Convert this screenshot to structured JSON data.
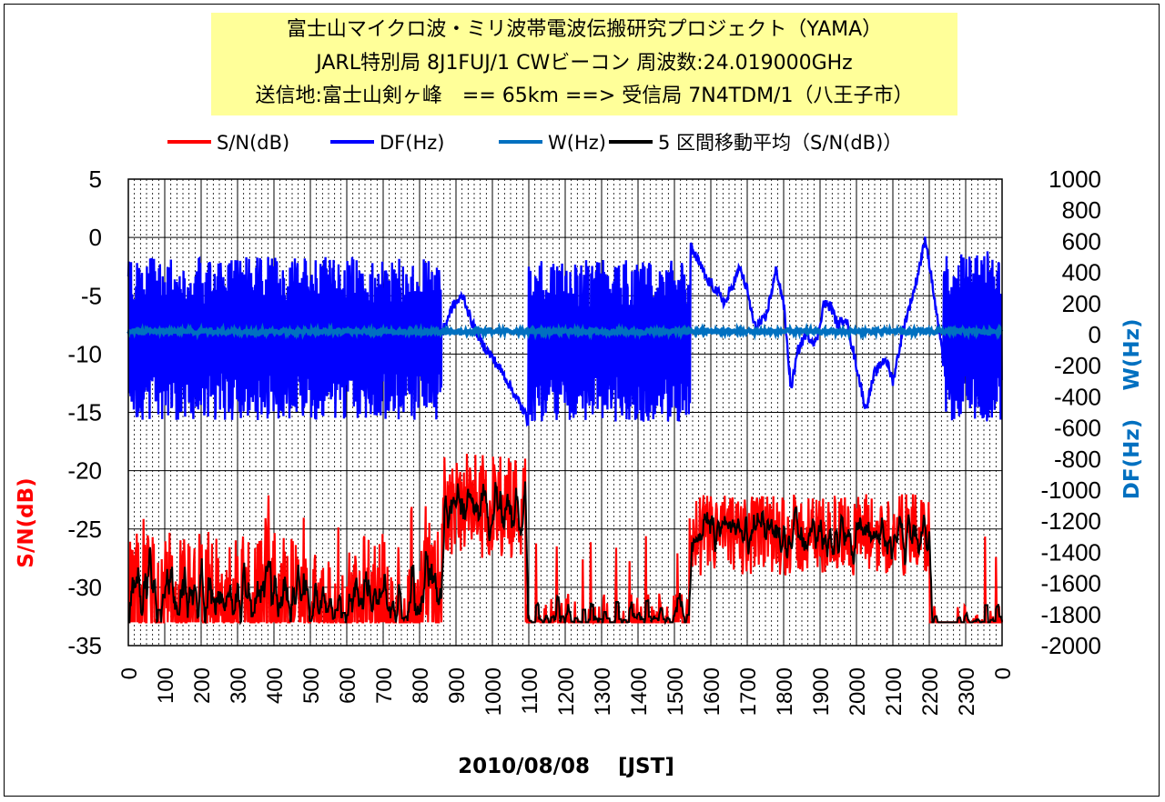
{
  "title": {
    "line1": "富士山マイクロ波・ミリ波帯電波伝搬研究プロジェクト（YAMA）",
    "line2": "JARL特別局 8J1FUJ/1 CWビーコン 周波数:24.019000GHz",
    "line3": "送信地:富士山剣ヶ峰　== 65km ==> 受信局 7N4TDM/1（八王子市）"
  },
  "colors": {
    "sn": "#ff0000",
    "df": "#0000ff",
    "w": "#0070c0",
    "ma": "#000000",
    "title_bg": "#ffff99"
  },
  "chart_data": {
    "type": "line",
    "xlabel": "2010/08/08　 [JST]",
    "ylabel_left": "S/N(dB)",
    "ylabel_right_df": "DF(Hz)",
    "ylabel_right_w": "W(Hz)",
    "x_ticks": [
      "0",
      "100",
      "200",
      "300",
      "400",
      "500",
      "600",
      "700",
      "800",
      "900",
      "1000",
      "1100",
      "1200",
      "1300",
      "1400",
      "1500",
      "1600",
      "1700",
      "1800",
      "1900",
      "2000",
      "2100",
      "2200",
      "2300",
      "0"
    ],
    "y_left_ticks": [
      "5",
      "0",
      "-5",
      "-10",
      "-15",
      "-20",
      "-25",
      "-30",
      "-35"
    ],
    "y_right_ticks": [
      "1000",
      "800",
      "600",
      "400",
      "200",
      "0",
      "-200",
      "-400",
      "-600",
      "-800",
      "-1000",
      "-1200",
      "-1400",
      "-1600",
      "-1800",
      "-2000"
    ],
    "ylim_left": [
      -35,
      5
    ],
    "ylim_right": [
      -2000,
      1000
    ],
    "xlim_hours": [
      0,
      24
    ],
    "grid": true,
    "legend_position": "top",
    "series": [
      {
        "name": "S/N(dB)",
        "axis": "left",
        "style": "noisy-band",
        "floor": -33,
        "segments": [
          {
            "from": 0,
            "to": 8.6,
            "level": -29.0,
            "spread": 3.8,
            "density": 0.55
          },
          {
            "from": 8.6,
            "to": 10.9,
            "level": -23.0,
            "spread": 4.5,
            "density": 1.0
          },
          {
            "from": 10.9,
            "to": 15.4,
            "level": -32.0,
            "spread": 1.5,
            "density": 0.35
          },
          {
            "from": 15.4,
            "to": 22.0,
            "level": -25.5,
            "spread": 3.5,
            "density": 1.0
          },
          {
            "from": 22.0,
            "to": 24.0,
            "level": -32.5,
            "spread": 1.0,
            "density": 0.25
          }
        ]
      },
      {
        "name": "DF(Hz)",
        "axis": "right",
        "style": "mixed",
        "segments": [
          {
            "from": 0,
            "to": 8.6,
            "kind": "oscillate",
            "high": 500,
            "low": -550
          },
          {
            "from": 8.6,
            "to": 11.0,
            "kind": "drift",
            "points": [
              [
                8.6,
                0
              ],
              [
                8.9,
                180
              ],
              [
                9.2,
                250
              ],
              [
                9.4,
                100
              ],
              [
                9.7,
                -50
              ],
              [
                10.0,
                -150
              ],
              [
                10.3,
                -250
              ],
              [
                10.6,
                -380
              ],
              [
                11.0,
                -560
              ]
            ]
          },
          {
            "from": 11.0,
            "to": 15.45,
            "kind": "oscillate",
            "high": 480,
            "low": -560
          },
          {
            "from": 15.45,
            "to": 24.0,
            "kind": "drift",
            "points": [
              [
                15.45,
                560
              ],
              [
                15.7,
                450
              ],
              [
                15.9,
                350
              ],
              [
                16.1,
                300
              ],
              [
                16.4,
                200
              ],
              [
                16.6,
                320
              ],
              [
                16.8,
                430
              ],
              [
                17.0,
                280
              ],
              [
                17.2,
                50
              ],
              [
                17.5,
                100
              ],
              [
                17.8,
                420
              ],
              [
                18.0,
                200
              ],
              [
                18.2,
                -350
              ],
              [
                18.4,
                -100
              ],
              [
                18.6,
                0
              ],
              [
                18.9,
                -50
              ],
              [
                19.1,
                200
              ],
              [
                19.3,
                180
              ],
              [
                19.5,
                50
              ],
              [
                19.7,
                120
              ],
              [
                20.0,
                -200
              ],
              [
                20.25,
                -480
              ],
              [
                20.5,
                -250
              ],
              [
                20.8,
                -150
              ],
              [
                21.0,
                -300
              ],
              [
                21.3,
                50
              ],
              [
                21.6,
                300
              ],
              [
                21.9,
                620
              ],
              [
                22.1,
                300
              ],
              [
                22.4,
                -200
              ]
            ]
          },
          {
            "from": 22.4,
            "to": 24.0,
            "kind": "oscillate",
            "high": 540,
            "low": -560
          }
        ]
      },
      {
        "name": "W(Hz)",
        "axis": "right",
        "style": "flat-noise",
        "level": 20,
        "noise": 15
      },
      {
        "name": "5 区間移動平均（S/N(dB)）",
        "axis": "left",
        "style": "moving-average",
        "window": 5
      }
    ]
  },
  "legend": [
    {
      "label": "S/N(dB)",
      "color": "#ff0000"
    },
    {
      "label": "DF(Hz)",
      "color": "#0000ff"
    },
    {
      "label": "W(Hz)",
      "color": "#0070c0"
    },
    {
      "label": "5 区間移動平均（S/N(dB)）",
      "color": "#000000"
    }
  ]
}
